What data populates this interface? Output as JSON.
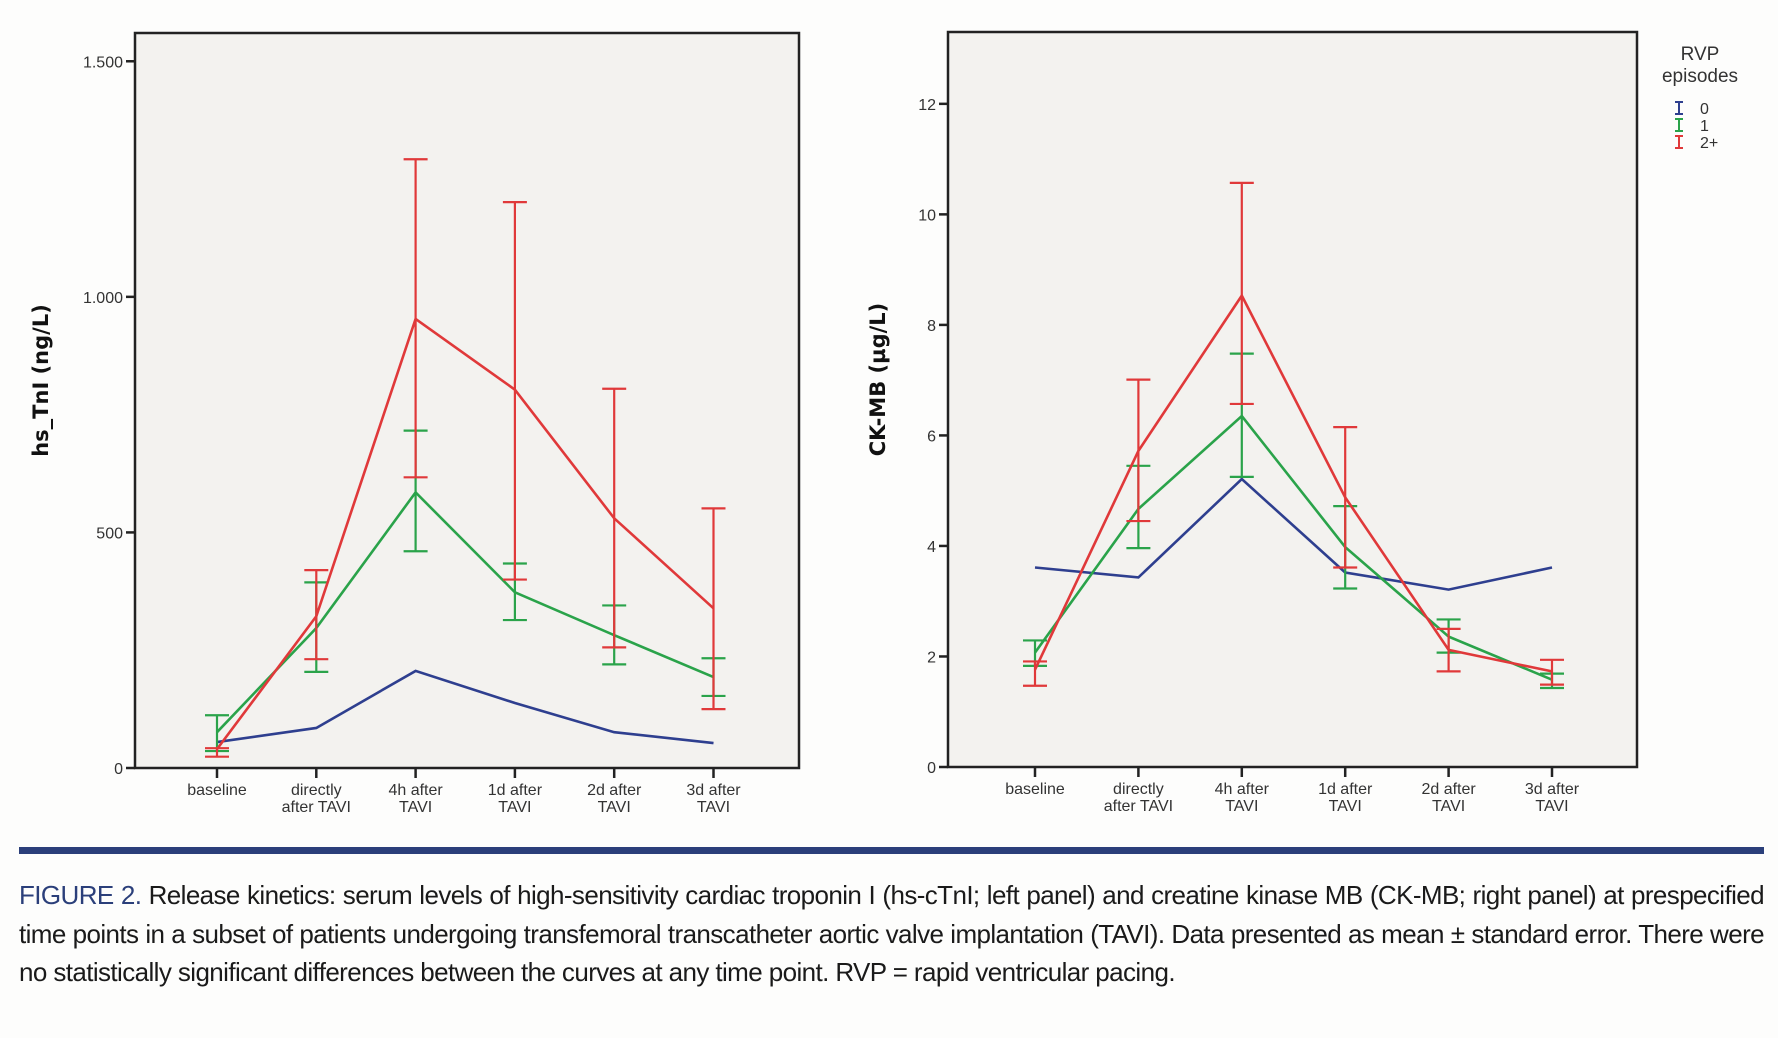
{
  "colors": {
    "group_0": "#2e3f8f",
    "group_1": "#2aa34a",
    "group_2plus": "#e0393a",
    "plot_bg": "#f3f2ef",
    "rule": "#2b3f7a",
    "caption_label": "#2b3f7a"
  },
  "chart_data": [
    {
      "type": "line",
      "panel": "left",
      "title": "",
      "xlabel": "",
      "ylabel": "hs_TnI (ng/L)",
      "ylim": [
        0,
        1560
      ],
      "yticks": [
        0,
        500,
        1000,
        1500
      ],
      "ytick_labels": [
        "0",
        "500",
        "1.000",
        "1.500"
      ],
      "grid": false,
      "categories": [
        [
          "baseline"
        ],
        [
          "directly",
          "after TAVI"
        ],
        [
          "4h after",
          "TAVI"
        ],
        [
          "1d after",
          "TAVI"
        ],
        [
          "2d after",
          "TAVI"
        ],
        [
          "3d after",
          "TAVI"
        ]
      ],
      "error_bars": "mean ± standard error",
      "series": [
        {
          "name": "0",
          "color_key": "group_0",
          "values": [
            55,
            85,
            206,
            138,
            76,
            53
          ],
          "lower": null,
          "upper": null
        },
        {
          "name": "1",
          "color_key": "group_1",
          "values": [
            76,
            297,
            585,
            373,
            282,
            193
          ],
          "lower": [
            36,
            204,
            460,
            314,
            220,
            153
          ],
          "upper": [
            112,
            394,
            716,
            434,
            345,
            233
          ]
        },
        {
          "name": "2+",
          "color_key": "group_2plus",
          "values": [
            40,
            322,
            953,
            803,
            530,
            339
          ],
          "lower": [
            24,
            231,
            617,
            400,
            256,
            125
          ],
          "upper": [
            42,
            420,
            1292,
            1201,
            805,
            551
          ]
        }
      ]
    },
    {
      "type": "line",
      "panel": "right",
      "title": "",
      "xlabel": "",
      "ylabel": "CK-MB (µg/L)",
      "ylim": [
        0,
        13.3
      ],
      "yticks": [
        0,
        2,
        4,
        6,
        8,
        10,
        12
      ],
      "ytick_labels": [
        "0",
        "2",
        "4",
        "6",
        "8",
        "10",
        "12"
      ],
      "grid": false,
      "categories": [
        [
          "baseline"
        ],
        [
          "directly",
          "after TAVI"
        ],
        [
          "4h after",
          "TAVI"
        ],
        [
          "1d after",
          "TAVI"
        ],
        [
          "2d after",
          "TAVI"
        ],
        [
          "3d after",
          "TAVI"
        ]
      ],
      "error_bars": "mean ± standard error",
      "legend": {
        "title": [
          "RVP",
          "episodes"
        ],
        "placement": "outside-top-right",
        "entries": [
          "0",
          "1",
          "2+"
        ]
      },
      "series": [
        {
          "name": "0",
          "color_key": "group_0",
          "values": [
            3.61,
            3.43,
            5.21,
            3.52,
            3.21,
            3.61
          ],
          "lower": null,
          "upper": null
        },
        {
          "name": "1",
          "color_key": "group_1",
          "values": [
            2.07,
            4.67,
            6.35,
            3.98,
            2.36,
            1.58
          ],
          "lower": [
            1.83,
            3.96,
            5.25,
            3.23,
            2.07,
            1.43
          ],
          "upper": [
            2.29,
            5.45,
            7.48,
            4.72,
            2.67,
            1.69
          ]
        },
        {
          "name": "2+",
          "color_key": "group_2plus",
          "values": [
            1.76,
            5.72,
            8.53,
            4.88,
            2.12,
            1.73
          ],
          "lower": [
            1.47,
            4.45,
            6.57,
            3.61,
            1.73,
            1.49
          ],
          "upper": [
            1.91,
            7.01,
            10.57,
            6.15,
            2.5,
            1.94
          ]
        }
      ]
    }
  ],
  "caption": {
    "label": "FIGURE 2.",
    "text": " Release kinetics: serum levels of high-sensitivity cardiac troponin I (hs-cTnI; left panel) and creatine kinase MB (CK-MB; right panel) at prespecified time points in a subset of patients undergoing transfemoral transcatheter aortic valve implantation (TAVI). Data presented as mean ± standard error. There were no statistically significant differences between the curves at any time point. RVP = rapid ventricular pacing."
  }
}
